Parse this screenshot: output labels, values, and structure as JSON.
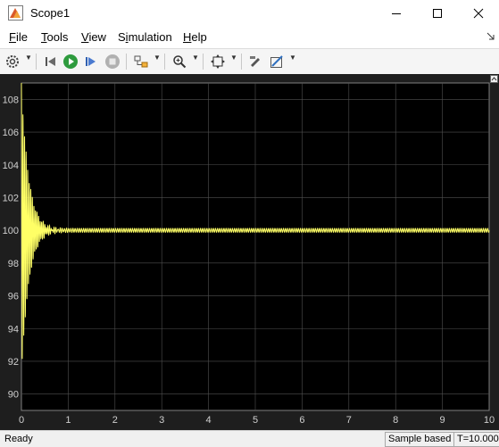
{
  "window": {
    "title": "Scope1"
  },
  "menu": [
    {
      "label": "File",
      "accel": "F",
      "rest": "ile"
    },
    {
      "label": "Tools",
      "accel": "T",
      "rest": "ools"
    },
    {
      "label": "View",
      "accel": "V",
      "rest": "iew"
    },
    {
      "label": "Simulation",
      "pre": "S",
      "accel": "i",
      "rest": "mulation"
    },
    {
      "label": "Help",
      "accel": "H",
      "rest": "elp"
    }
  ],
  "toolbar_icons": [
    "settings-icon",
    "step-back-icon",
    "run-icon",
    "step-forward-icon",
    "stop-icon",
    "highlight-icon",
    "zoom-icon",
    "fit-axes-icon",
    "write-access-icon",
    "style-icon"
  ],
  "colors": {
    "plot_background": "#000000",
    "figure_background": "#1e1e1e",
    "signal": "#ffff66",
    "grid": "#505050",
    "tick_text": "#d0d0d0"
  },
  "status": {
    "text": "Ready",
    "mode": "Sample based",
    "time": "T=10.000"
  },
  "chart_data": {
    "type": "line",
    "xlim": [
      0,
      10
    ],
    "ylim": [
      89,
      109
    ],
    "xticks": [
      0,
      1,
      2,
      3,
      4,
      5,
      6,
      7,
      8,
      9,
      10
    ],
    "yticks": [
      90,
      92,
      94,
      96,
      98,
      100,
      102,
      104,
      106,
      108
    ],
    "grid": true,
    "signal": {
      "steady_value": 100,
      "initial_amplitude": 9,
      "decay_rate": 6.5,
      "frequency_hz": 30,
      "settling_time": 1.0
    }
  }
}
